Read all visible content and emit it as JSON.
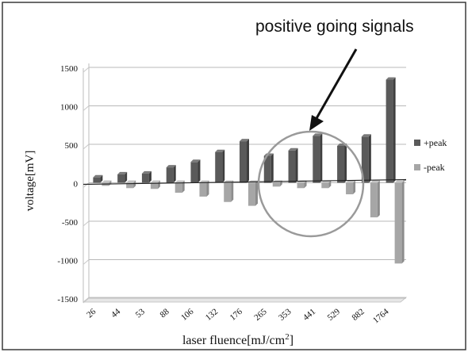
{
  "chart_data": {
    "type": "bar",
    "categories": [
      "26",
      "44",
      "53",
      "88",
      "106",
      "132",
      "176",
      "265",
      "353",
      "441",
      "529",
      "882",
      "1764"
    ],
    "series": [
      {
        "name": "+peak",
        "color": "#5a5a5a",
        "values": [
          70,
          110,
          120,
          200,
          270,
          400,
          540,
          350,
          420,
          610,
          480,
          600,
          1340
        ]
      },
      {
        "name": "-peak",
        "color": "#a6a6a6",
        "values": [
          -40,
          -70,
          -80,
          -130,
          -180,
          -250,
          -300,
          -50,
          -70,
          -70,
          -150,
          -450,
          -1050
        ]
      }
    ],
    "xlabel": "laser fluence[mJ/cm²]",
    "ylabel": "voltage[mV]",
    "ylim": [
      -1500,
      1500
    ],
    "yticks": [
      1500,
      1000,
      500,
      0,
      -500,
      -1000,
      -1500
    ],
    "ytick_labels": [
      "1500",
      "1000",
      "500",
      "0",
      "-500",
      "-1000",
      "-1500"
    ],
    "grid": true,
    "legend_position": "right",
    "annotation": "positive going signals"
  }
}
